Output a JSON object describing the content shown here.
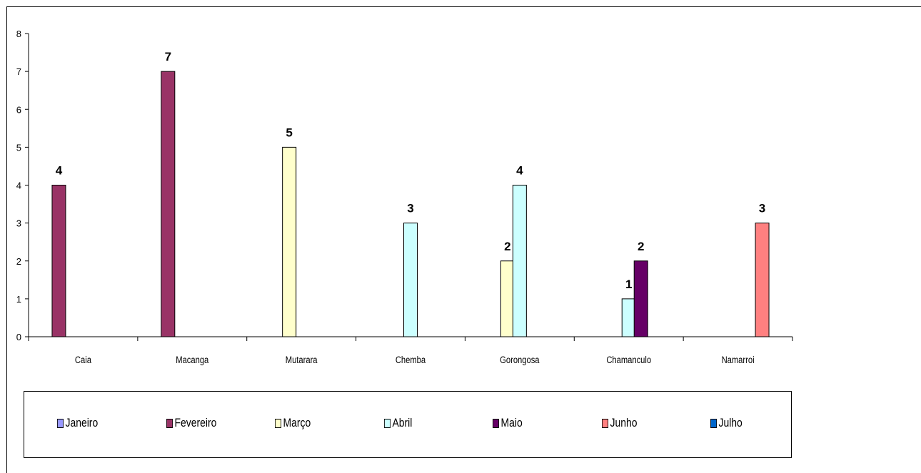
{
  "chart_data": {
    "type": "bar",
    "categories": [
      "Caia",
      "Macanga",
      "Mutarara",
      "Chemba",
      "Gorongosa",
      "Chamanculo",
      "Namarroi"
    ],
    "series": [
      {
        "name": "Janeiro",
        "color": "#9999ff",
        "values": [
          null,
          null,
          null,
          null,
          null,
          null,
          null
        ]
      },
      {
        "name": "Fevereiro",
        "color": "#993366",
        "values": [
          4,
          7,
          null,
          null,
          null,
          null,
          null
        ]
      },
      {
        "name": "Março",
        "color": "#ffffcc",
        "values": [
          null,
          null,
          5,
          null,
          2,
          null,
          null
        ]
      },
      {
        "name": "Abril",
        "color": "#ccffff",
        "values": [
          null,
          null,
          null,
          3,
          4,
          1,
          null
        ]
      },
      {
        "name": "Maio",
        "color": "#660066",
        "values": [
          null,
          null,
          null,
          null,
          null,
          2,
          null
        ]
      },
      {
        "name": "Junho",
        "color": "#ff8080",
        "values": [
          null,
          null,
          null,
          null,
          null,
          null,
          3
        ]
      },
      {
        "name": "Julho",
        "color": "#0066cc",
        "values": [
          null,
          null,
          null,
          null,
          null,
          null,
          null
        ]
      }
    ],
    "yticks": [
      "0",
      "1",
      "2",
      "3",
      "4",
      "5",
      "6",
      "7",
      "8"
    ],
    "ylim": [
      0,
      8
    ],
    "grid": false,
    "data_labels": true,
    "legend_position": "bottom"
  }
}
